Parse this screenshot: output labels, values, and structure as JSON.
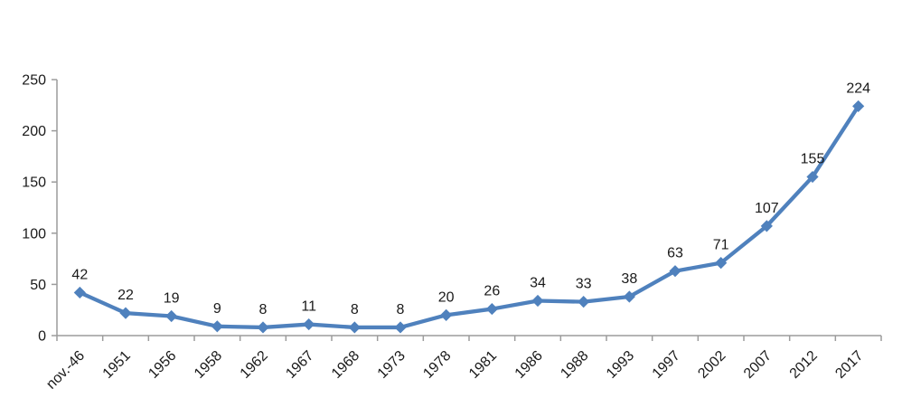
{
  "chart_data": {
    "type": "line",
    "title": "",
    "categories": [
      "nov.-46",
      "1951",
      "1956",
      "1958",
      "1962",
      "1967",
      "1968",
      "1973",
      "1978",
      "1981",
      "1986",
      "1988",
      "1993",
      "1997",
      "2002",
      "2007",
      "2012",
      "2017"
    ],
    "series": [
      {
        "name": "",
        "values": [
          42,
          22,
          19,
          9,
          8,
          11,
          8,
          8,
          20,
          26,
          34,
          33,
          38,
          63,
          71,
          107,
          155,
          224
        ]
      }
    ],
    "data_labels": [
      42,
      22,
      19,
      9,
      8,
      11,
      8,
      8,
      20,
      26,
      34,
      33,
      38,
      63,
      71,
      107,
      155,
      224
    ],
    "xlabel": "",
    "ylabel": "",
    "ylim": [
      0,
      250
    ],
    "yticks": [
      0,
      50,
      100,
      150,
      200,
      250
    ],
    "grid": false,
    "legend": "none",
    "marker": "diamond",
    "colors": {
      "series_line": "#4f81bd",
      "marker_fill": "#4f81bd",
      "axis": "#9c9c9c",
      "tick_label": "#1a1a1a",
      "data_label": "#1a1a1a"
    }
  }
}
